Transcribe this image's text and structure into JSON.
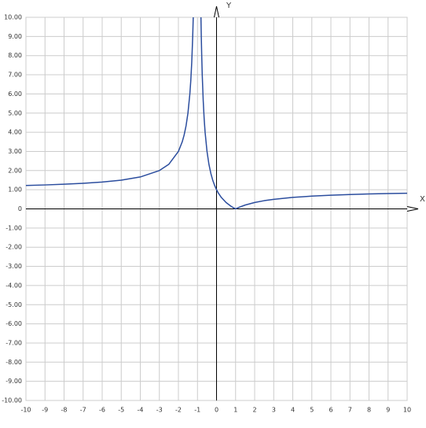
{
  "chart_data": {
    "type": "line",
    "x_label": "X",
    "y_label": "Y",
    "x": [
      -10,
      -9,
      -8,
      -7,
      -6,
      -5,
      -4,
      -3,
      -2.5,
      -2,
      -1.8,
      -1.7,
      -1.6,
      -1.5,
      -1.4,
      -1.35,
      -1.3,
      -1.25,
      -1.2222,
      -1,
      -0.8182,
      -0.8,
      -0.78,
      -0.75,
      -0.7,
      -0.65,
      -0.6,
      -0.5,
      -0.4,
      -0.3,
      -0.2,
      -0.1,
      0,
      0.1,
      0.25,
      0.5,
      0.75,
      0.9,
      1,
      1.2,
      1.5,
      2,
      2.5,
      3,
      4,
      5,
      6,
      7,
      8,
      9,
      10
    ],
    "series": [
      {
        "color": "#2b4d9e",
        "values": [
          1.222,
          1.25,
          1.286,
          1.333,
          1.4,
          1.5,
          1.667,
          2,
          2.333,
          3,
          3.5,
          3.857,
          4.333,
          5,
          6,
          6.714,
          7.667,
          9,
          10,
          null,
          10,
          9,
          8.09,
          7,
          5.667,
          4.714,
          4,
          3,
          2.333,
          1.857,
          1.5,
          1.222,
          1,
          0.818,
          0.6,
          0.333,
          0.143,
          0.053,
          0,
          0.091,
          0.2,
          0.333,
          0.429,
          0.5,
          0.6,
          0.667,
          0.714,
          0.75,
          0.778,
          0.8,
          0.818
        ]
      }
    ],
    "xlim": [
      -10,
      10
    ],
    "ylim": [
      -10,
      10
    ],
    "xticks": [
      -10,
      -9,
      -8,
      -7,
      -6,
      -5,
      -4,
      -3,
      -2,
      -1,
      0,
      1,
      2,
      3,
      4,
      5,
      6,
      7,
      8,
      9,
      10
    ],
    "yticks": [
      {
        "value": -10,
        "label": "-10.00"
      },
      {
        "value": -9,
        "label": "-9.00"
      },
      {
        "value": -8,
        "label": "-8.00"
      },
      {
        "value": -7,
        "label": "-7.00"
      },
      {
        "value": -6,
        "label": "-6.00"
      },
      {
        "value": -5,
        "label": "-5.00"
      },
      {
        "value": -4,
        "label": "-4.00"
      },
      {
        "value": -3,
        "label": "-3.00"
      },
      {
        "value": -2,
        "label": "-2.00"
      },
      {
        "value": -1,
        "label": "-1.00"
      },
      0,
      {
        "value": 1,
        "label": "1.00"
      },
      {
        "value": 2,
        "label": "2.00"
      },
      {
        "value": 3,
        "label": "3.00"
      },
      {
        "value": 4,
        "label": "4.00"
      },
      {
        "value": 5,
        "label": "5.00"
      },
      {
        "value": 6,
        "label": "6.00"
      },
      {
        "value": 7,
        "label": "7.00"
      },
      {
        "value": 8,
        "label": "8.00"
      },
      {
        "value": 9,
        "label": "9.00"
      },
      {
        "value": 10,
        "label": "10.00"
      }
    ],
    "grid": true
  }
}
